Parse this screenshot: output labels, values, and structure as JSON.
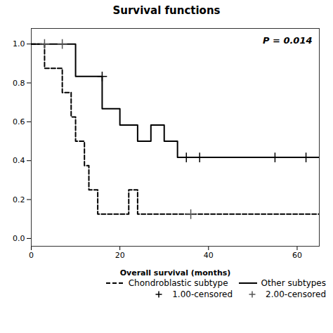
{
  "chart_data": {
    "type": "line",
    "title": "Survival functions",
    "x_label": "Overall survival (months)",
    "xlim": [
      0,
      65
    ],
    "ylim": [
      -0.04,
      1.08
    ],
    "xticks": [
      0,
      20,
      40,
      60
    ],
    "yticks": [
      {
        "value": 0.0,
        "label": "0.0"
      },
      0.2,
      0.4,
      0.6,
      0.8,
      {
        "value": 1.0,
        "label": "1.0"
      }
    ],
    "grid": false,
    "legend": "upper right",
    "annotations": [
      {
        "text": "P = 0.014"
      }
    ],
    "series": [
      {
        "name": "Chondroblastic subtype",
        "type": "line",
        "line_style": "dashed",
        "color": "#000000",
        "x": [
          0,
          3,
          3,
          7,
          7,
          9,
          9,
          10,
          10,
          12,
          12,
          13,
          13,
          15,
          15,
          22,
          22,
          24,
          24,
          65
        ],
        "values": [
          1.0,
          1.0,
          0.875,
          0.875,
          0.75,
          0.75,
          0.625,
          0.625,
          0.5,
          0.5,
          0.375,
          0.375,
          0.25,
          0.25,
          0.125,
          0.125,
          0.25,
          0.25,
          0.125,
          0.125
        ]
      },
      {
        "name": "Other subtypes",
        "type": "line",
        "line_style": "solid",
        "color": "#000000",
        "x": [
          0,
          10,
          10,
          16,
          16,
          20,
          20,
          24,
          24,
          27,
          27,
          30,
          30,
          33,
          33,
          65
        ],
        "values": [
          1.0,
          1.0,
          0.833,
          0.833,
          0.667,
          0.667,
          0.583,
          0.583,
          0.5,
          0.5,
          0.583,
          0.583,
          0.5,
          0.5,
          0.417,
          0.417
        ]
      },
      {
        "name": "1.00-censored",
        "type": "scatter",
        "marker": "plus",
        "color": "#000000",
        "x": [
          35,
          38,
          55,
          62,
          16
        ],
        "values": [
          0.417,
          0.417,
          0.417,
          0.417,
          0.833
        ]
      },
      {
        "name": "2.00-censored",
        "type": "scatter",
        "marker": "plus",
        "color": "#555555",
        "x": [
          36,
          3,
          7
        ],
        "values": [
          0.125,
          1.0,
          1.0
        ]
      }
    ]
  }
}
